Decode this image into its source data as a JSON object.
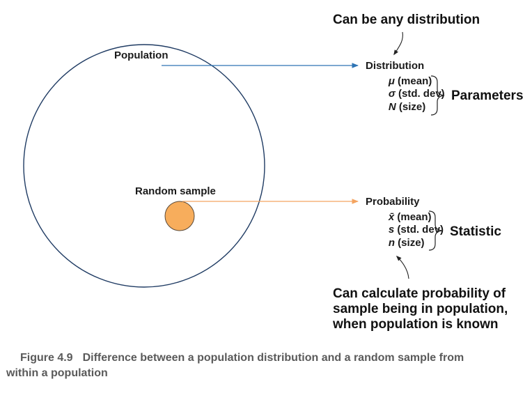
{
  "diagram": {
    "population": {
      "label": "Population",
      "target_label": "Distribution",
      "params": [
        {
          "symbol": "μ",
          "text": " (mean)"
        },
        {
          "symbol": "σ",
          "text": " (std. dev)"
        },
        {
          "symbol": "N",
          "text": " (size)"
        }
      ],
      "group_label": "Parameters",
      "note": "Can be any distribution"
    },
    "sample": {
      "label": "Random sample",
      "target_label": "Probability",
      "stats": [
        {
          "symbol": "x̄",
          "text": " (mean)"
        },
        {
          "symbol": "s",
          "text": " (std. dev)"
        },
        {
          "symbol": "n",
          "text": " (size)"
        }
      ],
      "group_label": "Statistic",
      "note_lines": [
        "Can calculate probability of",
        "sample being in population,",
        "when population is known"
      ]
    },
    "colors": {
      "population_stroke": "#1f3b63",
      "population_arrow": "#2e74b5",
      "sample_fill": "#f7ad5c",
      "sample_stroke": "#5a4a3a",
      "sample_arrow": "#f4a460"
    }
  },
  "caption": {
    "number": "Figure 4.9",
    "text_line1": "Difference between a population distribution and a random sample from",
    "text_line2": "within a population"
  }
}
